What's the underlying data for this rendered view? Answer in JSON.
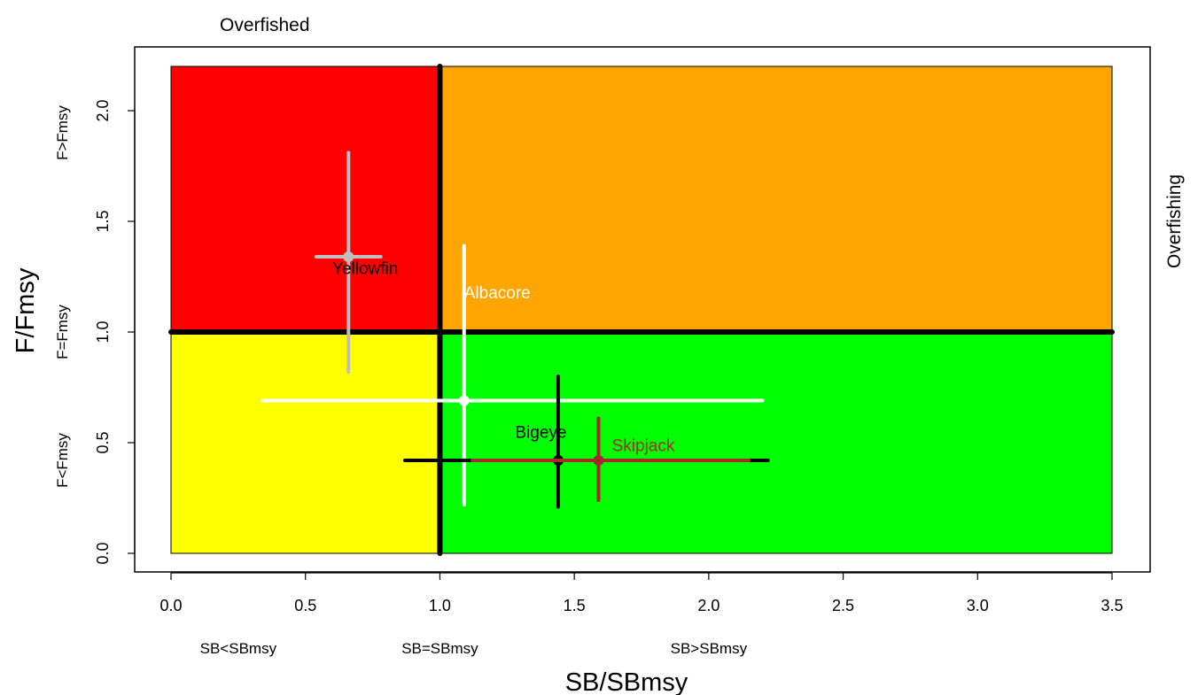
{
  "chart_data": {
    "type": "scatter",
    "title": "",
    "top_left_label": "Overfished",
    "right_label": "Overfishing",
    "xlabel": "SB/SBmsy",
    "ylabel": "F/Fmsy",
    "xlim": [
      0.0,
      3.5
    ],
    "ylim": [
      0.0,
      2.2
    ],
    "x_ticks": [
      {
        "value": 0.0,
        "label": "0.0"
      },
      {
        "value": 0.5,
        "label": "0.5"
      },
      {
        "value": 1.0,
        "label": "1.0"
      },
      {
        "value": 1.5,
        "label": "1.5"
      },
      {
        "value": 2.0,
        "label": "2.0"
      },
      {
        "value": 2.5,
        "label": "2.5"
      },
      {
        "value": 3.0,
        "label": "3.0"
      },
      {
        "value": 3.5,
        "label": "3.5"
      }
    ],
    "y_ticks": [
      {
        "value": 0.0,
        "label": "0.0"
      },
      {
        "value": 0.5,
        "label": "0.5"
      },
      {
        "value": 1.0,
        "label": "1.0"
      },
      {
        "value": 1.5,
        "label": "1.5"
      },
      {
        "value": 2.0,
        "label": "2.0"
      }
    ],
    "x_region_labels": [
      {
        "value": 0.25,
        "label": "SB<SBmsy"
      },
      {
        "value": 1.0,
        "label": "SB=SBmsy"
      },
      {
        "value": 2.0,
        "label": "SB>SBmsy"
      }
    ],
    "y_region_labels": [
      {
        "value": 0.42,
        "label": "F<Fmsy"
      },
      {
        "value": 1.0,
        "label": "F=Fmsy"
      },
      {
        "value": 1.9,
        "label": "F>Fmsy"
      }
    ],
    "zones": [
      {
        "name": "overfished-overfishing",
        "x": [
          0.0,
          1.0
        ],
        "y": [
          1.0,
          2.2
        ],
        "color": "#ff0000"
      },
      {
        "name": "healthy-overfishing",
        "x": [
          1.0,
          3.5
        ],
        "y": [
          1.0,
          2.2
        ],
        "color": "#ffa500"
      },
      {
        "name": "overfished-not-overfishing",
        "x": [
          0.0,
          1.0
        ],
        "y": [
          0.0,
          1.0
        ],
        "color": "#ffff00"
      },
      {
        "name": "healthy",
        "x": [
          1.0,
          3.5
        ],
        "y": [
          0.0,
          1.0
        ],
        "color": "#00ff00"
      }
    ],
    "reference_lines": {
      "x": 1.0,
      "y": 1.0,
      "color": "#000000"
    },
    "series": [
      {
        "name": "Yellowfin",
        "color": "#bebebe",
        "label_color": "#000000",
        "x": 0.66,
        "y": 1.34,
        "x_range": [
          0.54,
          0.78
        ],
        "y_range": [
          0.82,
          1.81
        ],
        "label_at": [
          0.6,
          1.29
        ]
      },
      {
        "name": "Albacore",
        "color": "#ffffff",
        "label_color": "#ffffff",
        "x": 1.09,
        "y": 0.69,
        "x_range": [
          0.34,
          2.2
        ],
        "y_range": [
          0.22,
          1.39
        ],
        "label_at": [
          1.09,
          1.18
        ]
      },
      {
        "name": "Bigeye",
        "color": "#000000",
        "label_color": "#000000",
        "x": 1.44,
        "y": 0.42,
        "x_range": [
          0.87,
          2.22
        ],
        "y_range": [
          0.21,
          0.8
        ],
        "label_at": [
          1.28,
          0.55
        ]
      },
      {
        "name": "Skipjack",
        "color": "#a52a2a",
        "label_color": "#a52a2a",
        "x": 1.59,
        "y": 0.42,
        "x_range": [
          1.12,
          2.15
        ],
        "y_range": [
          0.24,
          0.61
        ],
        "label_at": [
          1.64,
          0.49
        ]
      }
    ]
  }
}
